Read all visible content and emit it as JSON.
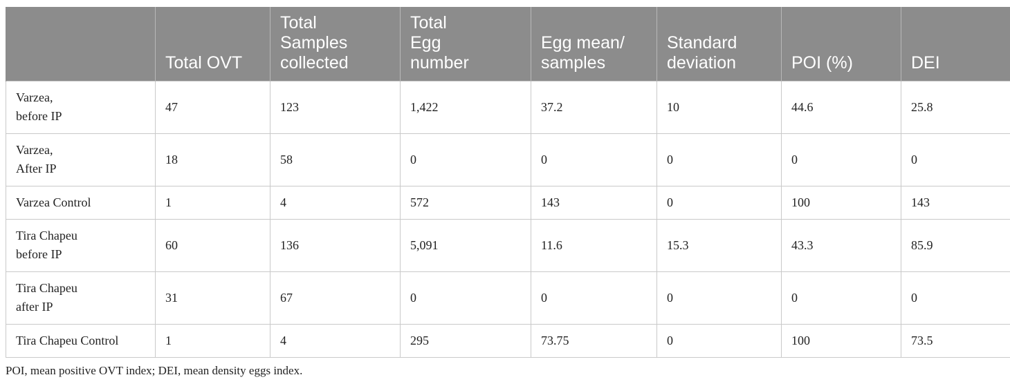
{
  "table": {
    "headers": [
      "",
      "Total OVT",
      "Total\nSamples\ncollected",
      "Total\nEgg\nnumber",
      "Egg mean/\nsamples",
      "Standard\ndeviation",
      "POI (%)",
      "DEI"
    ],
    "rows": [
      [
        "Varzea,\nbefore IP",
        "47",
        "123",
        "1,422",
        "37.2",
        "10",
        "44.6",
        "25.8"
      ],
      [
        "Varzea,\nAfter IP",
        "18",
        "58",
        "0",
        "0",
        "0",
        "0",
        "0"
      ],
      [
        "Varzea Control",
        "1",
        "4",
        "572",
        "143",
        "0",
        "100",
        "143"
      ],
      [
        "Tira Chapeu\nbefore IP",
        "60",
        "136",
        "5,091",
        "11.6",
        "15.3",
        "43.3",
        "85.9"
      ],
      [
        "Tira Chapeu\nafter IP",
        "31",
        "67",
        "0",
        "0",
        "0",
        "0",
        "0"
      ],
      [
        "Tira Chapeu Control",
        "1",
        "4",
        "295",
        "73.75",
        "0",
        "100",
        "73.5"
      ]
    ]
  },
  "footnote": "POI, mean positive OVT index; DEI, mean density eggs index."
}
